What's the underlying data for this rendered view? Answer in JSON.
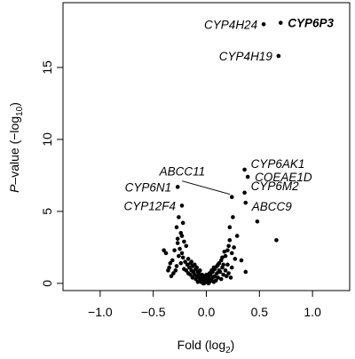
{
  "chart_data": {
    "type": "scatter",
    "title": "",
    "xlabel": {
      "main": "Fold (log",
      "sub": "2",
      "close": ")"
    },
    "ylabel": {
      "italic": "P",
      "main": "–value (−log",
      "sub": "10",
      "close": ")"
    },
    "xlim": [
      -1.35,
      1.35
    ],
    "ylim": [
      -0.5,
      19.5
    ],
    "x_ticks": [
      -1.0,
      -0.5,
      0.0,
      0.5,
      1.0
    ],
    "x_tick_labels": [
      "−1.0",
      "−0.5",
      "0.0",
      "0.5",
      "1.0"
    ],
    "y_ticks": [
      0,
      5,
      10,
      15
    ],
    "y_tick_labels": [
      "0",
      "5",
      "10",
      "15"
    ],
    "grid": false,
    "point_color": "#000000",
    "labeled_points": [
      {
        "name": "CYP6P3",
        "x": 0.7,
        "y": 18.1,
        "bold": true
      },
      {
        "name": "CYP4H24",
        "x": 0.54,
        "y": 18.0,
        "bold": false
      },
      {
        "name": "CYP4H19",
        "x": 0.68,
        "y": 15.8,
        "bold": false
      },
      {
        "name": "CYP6AK1",
        "x": 0.36,
        "y": 7.9,
        "bold": false
      },
      {
        "name": "COEAE1D",
        "x": 0.39,
        "y": 7.4,
        "bold": false
      },
      {
        "name": "ABCC11",
        "x": 0.24,
        "y": 6.0,
        "bold": false
      },
      {
        "name": "CYP6M2",
        "x": 0.36,
        "y": 6.3,
        "bold": false
      },
      {
        "name": "ABCC9",
        "x": 0.37,
        "y": 5.6,
        "bold": false
      },
      {
        "name": "CYP6N1",
        "x": -0.27,
        "y": 6.7,
        "bold": false
      },
      {
        "name": "CYP12F4",
        "x": -0.23,
        "y": 5.4,
        "bold": false
      }
    ],
    "points": [
      [
        0.66,
        3.0
      ],
      [
        0.48,
        4.3
      ],
      [
        0.29,
        3.3
      ],
      [
        0.22,
        3.9
      ],
      [
        0.25,
        4.6
      ],
      [
        0.33,
        1.6
      ],
      [
        0.37,
        0.8
      ],
      [
        0.21,
        2.6
      ],
      [
        0.24,
        2.1
      ],
      [
        0.27,
        1.7
      ],
      [
        0.18,
        1.9
      ],
      [
        0.24,
        1.1
      ],
      [
        0.2,
        1.3
      ],
      [
        0.17,
        2.2
      ],
      [
        0.15,
        1.1
      ],
      [
        0.13,
        0.8
      ],
      [
        0.16,
        0.6
      ],
      [
        0.11,
        0.4
      ],
      [
        0.14,
        0.3
      ],
      [
        0.09,
        0.2
      ],
      [
        0.07,
        0.1
      ],
      [
        0.05,
        0.2
      ],
      [
        0.03,
        0.1
      ],
      [
        0.01,
        0.1
      ],
      [
        0.12,
        0.9
      ],
      [
        0.1,
        0.7
      ],
      [
        0.08,
        0.5
      ],
      [
        0.06,
        0.4
      ],
      [
        0.04,
        0.3
      ],
      [
        0.02,
        0.0
      ],
      [
        -0.01,
        0.1
      ],
      [
        -0.03,
        0.0
      ],
      [
        -0.02,
        0.2
      ],
      [
        -0.05,
        0.1
      ],
      [
        -0.04,
        0.3
      ],
      [
        -0.06,
        0.2
      ],
      [
        -0.07,
        0.4
      ],
      [
        -0.08,
        0.1
      ],
      [
        -0.09,
        0.5
      ],
      [
        -0.1,
        0.3
      ],
      [
        -0.11,
        0.6
      ],
      [
        -0.12,
        0.8
      ],
      [
        -0.13,
        0.4
      ],
      [
        -0.14,
        0.9
      ],
      [
        -0.15,
        0.6
      ],
      [
        -0.16,
        1.1
      ],
      [
        -0.17,
        0.7
      ],
      [
        -0.18,
        1.3
      ],
      [
        -0.19,
        0.9
      ],
      [
        -0.2,
        1.5
      ],
      [
        -0.21,
        1.0
      ],
      [
        -0.22,
        1.8
      ],
      [
        -0.23,
        2.1
      ],
      [
        -0.24,
        1.4
      ],
      [
        -0.25,
        2.4
      ],
      [
        -0.26,
        1.9
      ],
      [
        -0.27,
        2.8
      ],
      [
        -0.28,
        1.2
      ],
      [
        -0.29,
        0.9
      ],
      [
        -0.3,
        2.3
      ],
      [
        -0.31,
        0.7
      ],
      [
        -0.32,
        1.6
      ],
      [
        -0.33,
        0.5
      ],
      [
        -0.34,
        1.4
      ],
      [
        -0.36,
        0.9
      ],
      [
        -0.38,
        2.1
      ],
      [
        -0.4,
        2.3
      ],
      [
        -0.35,
        1.1
      ],
      [
        -0.27,
        3.1
      ],
      [
        -0.24,
        3.5
      ],
      [
        -0.28,
        3.9
      ],
      [
        -0.22,
        4.2
      ],
      [
        -0.26,
        4.6
      ],
      [
        -0.21,
        2.9
      ],
      [
        -0.23,
        3.3
      ],
      [
        -0.19,
        2.6
      ],
      [
        -0.17,
        1.7
      ],
      [
        -0.15,
        1.4
      ],
      [
        -0.13,
        1.2
      ],
      [
        -0.1,
        1.0
      ],
      [
        -0.08,
        0.8
      ],
      [
        -0.07,
        0.7
      ],
      [
        -0.05,
        0.5
      ],
      [
        -0.03,
        0.4
      ],
      [
        0.0,
        0.3
      ],
      [
        0.02,
        0.5
      ],
      [
        0.04,
        0.6
      ],
      [
        0.06,
        0.8
      ],
      [
        0.08,
        1.0
      ],
      [
        0.1,
        1.2
      ],
      [
        0.12,
        1.4
      ],
      [
        0.14,
        1.6
      ],
      [
        0.16,
        1.3
      ],
      [
        0.18,
        0.9
      ],
      [
        0.19,
        0.5
      ],
      [
        0.21,
        0.7
      ],
      [
        0.23,
        0.4
      ],
      [
        0.0,
        0.6
      ],
      [
        -0.01,
        0.5
      ],
      [
        0.01,
        0.3
      ],
      [
        -0.02,
        0.0
      ],
      [
        0.03,
        0.7
      ],
      [
        -0.04,
        0.6
      ],
      [
        0.05,
        0.9
      ],
      [
        -0.06,
        0.9
      ],
      [
        0.07,
        1.1
      ],
      [
        -0.09,
        1.1
      ],
      [
        0.11,
        1.3
      ],
      [
        -0.11,
        1.3
      ],
      [
        0.15,
        1.8
      ],
      [
        -0.14,
        1.5
      ],
      [
        0.2,
        2.3
      ],
      [
        0.22,
        3.0
      ],
      [
        0.26,
        2.5
      ]
    ]
  }
}
